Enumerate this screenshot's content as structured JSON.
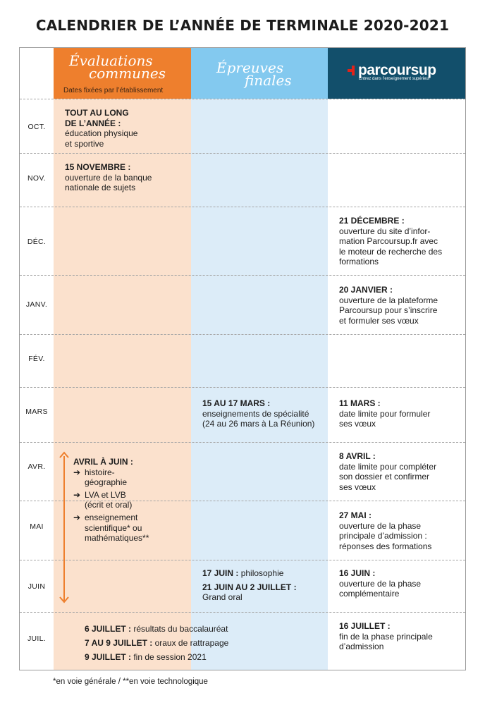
{
  "title": "CALENDRIER DE L’ANNÉE DE TERMINALE 2020-2021",
  "headers": {
    "eval_line1": "Évaluations",
    "eval_line2": "communes",
    "eval_sub": "Dates fixées par l’établissement",
    "epr_line1": "Épreuves",
    "epr_line2": "finales",
    "ps_logo": "parcoursup",
    "ps_tagline": "Entrez dans l’enseignement supérieur"
  },
  "months": [
    "OCT.",
    "NOV.",
    "DÉC.",
    "JANV.",
    "FÉV.",
    "MARS",
    "AVR.",
    "MAI",
    "JUIN",
    "JUIL."
  ],
  "eval": {
    "oct_head1": "TOUT AU LONG",
    "oct_head2": "DE L’ANNÉE :",
    "oct_t1": "éducation physique",
    "oct_t2": "et sportive",
    "nov_head": "15 NOVEMBRE :",
    "nov_t1": "ouverture de la banque",
    "nov_t2": "nationale de sujets",
    "avr_head": "AVRIL À JUIN :",
    "avr_i1a": "histoire-",
    "avr_i1b": "géographie",
    "avr_i2a": "LVA et LVB",
    "avr_i2b": "(écrit et oral)",
    "avr_i3a": "enseignement",
    "avr_i3b": "scientifique* ou",
    "avr_i3c": "mathématiques**",
    "arrow": "➔"
  },
  "juil": {
    "l1_b": "6 JUILLET :",
    "l1_t": " résultats du baccalauréat",
    "l2_b": "7 AU 9 JUILLET :",
    "l2_t": " oraux de rattrapage",
    "l3_b": "9 JUILLET :",
    "l3_t": " fin de session 2021"
  },
  "epreuves": {
    "mars_head": "15 AU 17 MARS :",
    "mars_t1": "enseignements de spécialité",
    "mars_t2": "(24 au 26 mars à La Réunion)",
    "juin1_b": "17 JUIN :",
    "juin1_t": " philosophie",
    "juin2_b": "21 JUIN AU 2 JUILLET :",
    "juin2_t": "Grand oral"
  },
  "parcoursup": {
    "dec_head": "21 DÉCEMBRE :",
    "dec_t1": "ouverture du site d’infor-",
    "dec_t2": "mation Parcoursup.fr avec",
    "dec_t3": "le moteur de recherche des",
    "dec_t4": "formations",
    "janv_head": "20 JANVIER :",
    "janv_t1": "ouverture de la plateforme",
    "janv_t2": "Parcoursup pour s’inscrire",
    "janv_t3": "et formuler ses vœux",
    "mars_head": "11 MARS :",
    "mars_t1": "date limite pour formuler",
    "mars_t2": "ses vœux",
    "avr_head": "8 AVRIL :",
    "avr_t1": "date limite pour compléter",
    "avr_t2": "son dossier et confirmer",
    "avr_t3": "ses vœux",
    "mai_head": "27 MAI :",
    "mai_t1": "ouverture de la phase",
    "mai_t2": "principale d’admission :",
    "mai_t3": "réponses des formations",
    "juin_head": "16 JUIN :",
    "juin_t1": "ouverture de la phase",
    "juin_t2": "complémentaire",
    "juil_head": "16 JUILLET :",
    "juil_t1": "fin de la phase principale",
    "juil_t2": "d’admission"
  },
  "footnote": "*en voie générale / **en voie technologique",
  "colors": {
    "orange": "#ee7f2d",
    "light_orange": "#fbe1cd",
    "blue": "#83c9ef",
    "light_blue": "#dcecf8",
    "navy": "#124f6b",
    "red": "#e2231a"
  }
}
